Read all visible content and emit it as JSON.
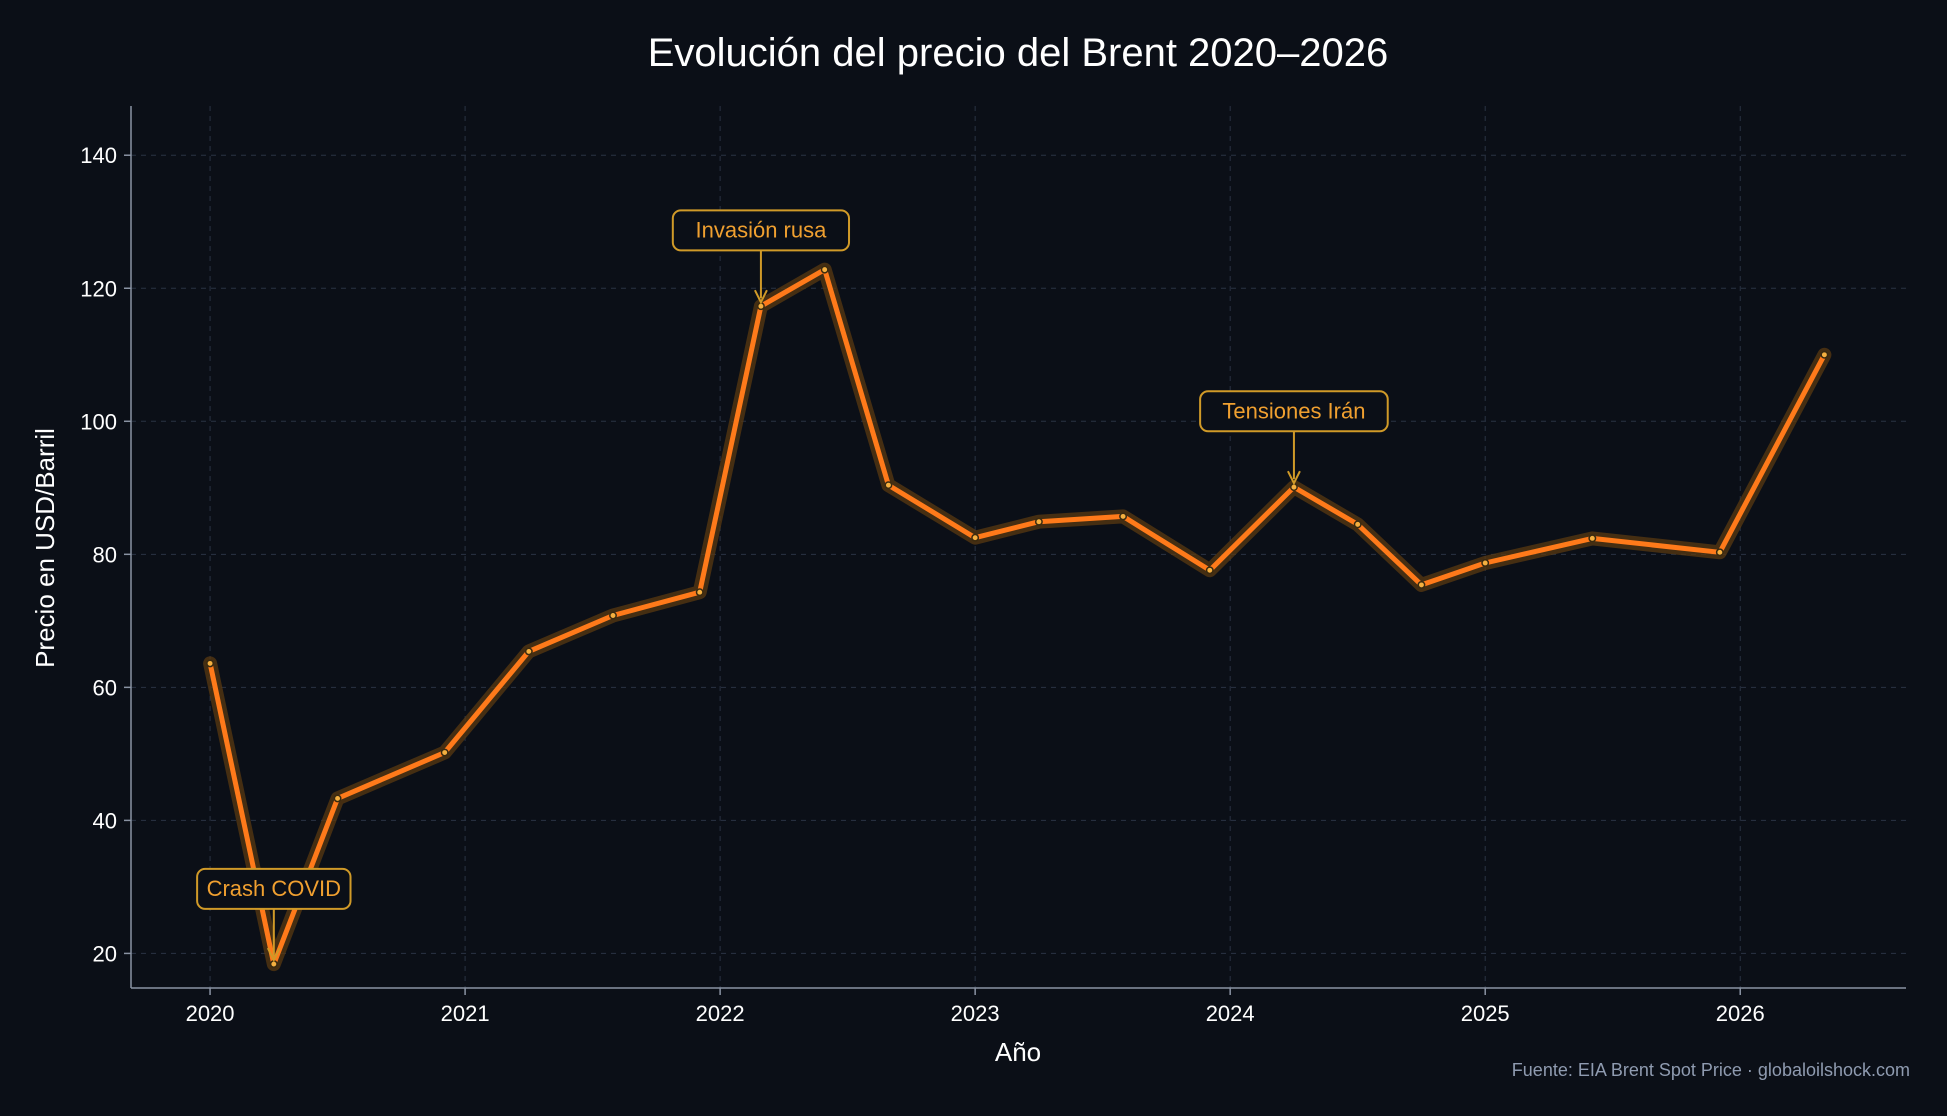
{
  "chart_data": {
    "type": "line",
    "title": "Evolución del precio del Brent 2020–2026",
    "xlabel": "Año",
    "ylabel": "Precio en USD/Barril",
    "source": "Fuente: EIA Brent Spot Price · globaloilshock.com",
    "xlim": [
      2019.69,
      2026.65
    ],
    "ylim": [
      14.8,
      147.4
    ],
    "xticks": [
      "2020",
      "2021",
      "2022",
      "2023",
      "2024",
      "2025",
      "2026"
    ],
    "yticks": [
      "20",
      "40",
      "60",
      "80",
      "100",
      "120",
      "140"
    ],
    "grid": true,
    "colors": {
      "background": "#0b0f17",
      "line": "#ff7a1a",
      "glow": "#5a3a12",
      "annotation": "#f0a030",
      "grid": "#2a3344",
      "axis": "#8a93a3"
    },
    "series": [
      {
        "x": [
          2020.0,
          2020.25,
          2020.5,
          2020.92,
          2021.25,
          2021.58,
          2021.92,
          2022.16,
          2022.41,
          2022.66,
          2023.0,
          2023.25,
          2023.58,
          2023.92,
          2024.25,
          2024.5,
          2024.75,
          2025.0,
          2025.42,
          2025.92,
          2026.33
        ],
        "y": [
          63.6,
          18.4,
          43.3,
          50.2,
          65.4,
          70.8,
          74.3,
          117.3,
          122.8,
          90.4,
          82.5,
          84.9,
          85.7,
          77.6,
          90.1,
          84.5,
          75.4,
          78.7,
          82.4,
          80.3,
          110.0
        ]
      }
    ],
    "annotations": [
      {
        "text": "Crash COVID",
        "x": 2020.25,
        "y": 18.4,
        "label_x": 2020.25,
        "label_y": 28.5
      },
      {
        "text": "Invasión rusa",
        "x": 2022.16,
        "y": 117.3,
        "label_x": 2022.16,
        "label_y": 127.5
      },
      {
        "text": "Tensiones Irán",
        "x": 2024.25,
        "y": 90.1,
        "label_x": 2024.25,
        "label_y": 100.3
      }
    ]
  }
}
